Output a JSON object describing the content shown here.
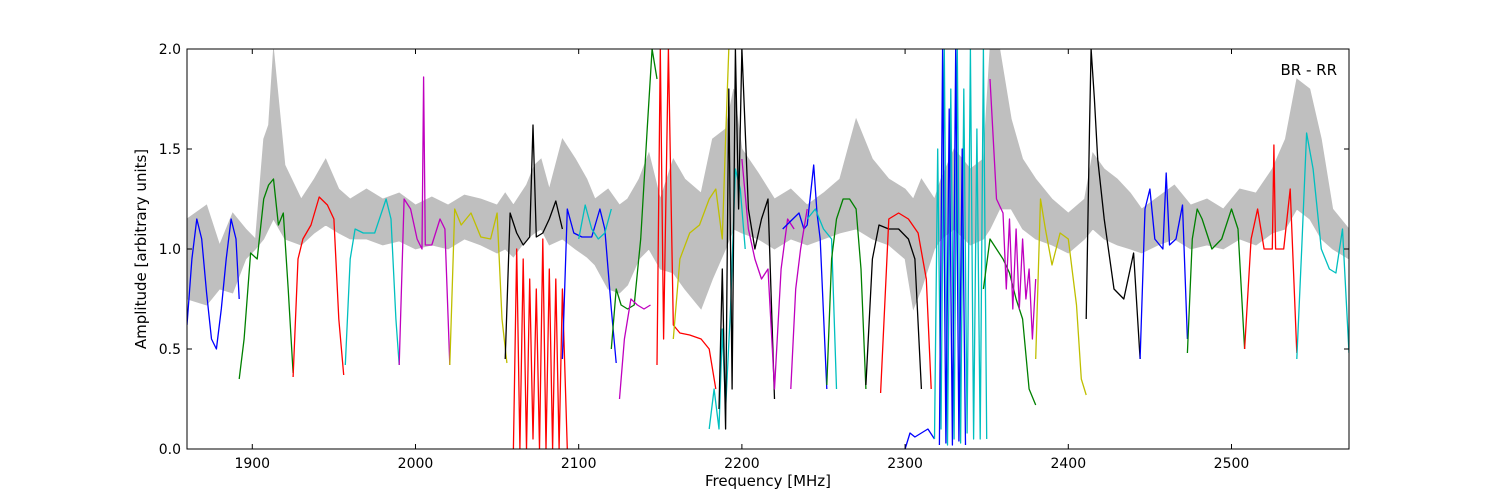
{
  "chart_data": {
    "type": "line",
    "title": "",
    "annotation": "BR - RR",
    "xlabel": "Frequency [MHz]",
    "ylabel": "Amplitude [arbitrary units]",
    "xlim": [
      1860,
      2572
    ],
    "ylim": [
      0.0,
      2.0
    ],
    "xticks": [
      1900,
      2000,
      2100,
      2200,
      2300,
      2400,
      2500
    ],
    "yticks": [
      0.0,
      0.5,
      1.0,
      1.5,
      2.0
    ],
    "xtick_labels": [
      "1900",
      "2000",
      "2100",
      "2200",
      "2300",
      "2400",
      "2500"
    ],
    "ytick_labels": [
      "0.0",
      "0.5",
      "1.0",
      "1.5",
      "2.0"
    ],
    "grid": false,
    "envelope": {
      "color": "#bfbfbf",
      "x": [
        1860,
        1872,
        1880,
        1888,
        1896,
        1902,
        1907,
        1910,
        1913,
        1920,
        1930,
        1938,
        1945,
        1953,
        1960,
        1970,
        1980,
        1990,
        2000,
        2010,
        2020,
        2030,
        2040,
        2050,
        2055,
        2060,
        2068,
        2073,
        2077,
        2082,
        2090,
        2098,
        2105,
        2110,
        2118,
        2125,
        2130,
        2137,
        2143,
        2150,
        2158,
        2165,
        2175,
        2182,
        2190,
        2195,
        2200,
        2210,
        2220,
        2230,
        2240,
        2250,
        2260,
        2270,
        2280,
        2290,
        2300,
        2305,
        2310,
        2318,
        2322,
        2330,
        2340,
        2348,
        2352,
        2358,
        2365,
        2372,
        2380,
        2390,
        2400,
        2410,
        2415,
        2422,
        2430,
        2438,
        2445,
        2455,
        2465,
        2475,
        2485,
        2495,
        2505,
        2515,
        2525,
        2533,
        2540,
        2548,
        2555,
        2562,
        2572
      ],
      "upper": [
        1.15,
        1.22,
        1.02,
        1.18,
        1.1,
        1.05,
        1.55,
        1.62,
        2.0,
        1.42,
        1.25,
        1.35,
        1.45,
        1.3,
        1.25,
        1.3,
        1.25,
        1.28,
        1.22,
        1.26,
        1.22,
        1.27,
        1.25,
        1.22,
        1.28,
        1.22,
        1.32,
        1.42,
        1.45,
        1.3,
        1.55,
        1.45,
        1.35,
        1.25,
        1.3,
        1.22,
        1.25,
        1.35,
        1.48,
        1.25,
        1.45,
        1.35,
        1.28,
        1.55,
        1.6,
        1.8,
        1.5,
        1.38,
        1.25,
        1.3,
        1.22,
        1.28,
        1.35,
        1.65,
        1.45,
        1.35,
        1.3,
        1.25,
        1.35,
        1.25,
        1.35,
        1.5,
        1.4,
        1.45,
        2.0,
        2.0,
        1.65,
        1.45,
        1.35,
        1.25,
        1.18,
        1.25,
        1.48,
        1.4,
        1.35,
        1.28,
        1.2,
        1.26,
        1.32,
        1.22,
        1.25,
        1.2,
        1.3,
        1.28,
        1.4,
        1.55,
        1.85,
        1.8,
        1.55,
        1.2,
        1.1
      ],
      "lower": [
        0.75,
        0.72,
        0.8,
        0.78,
        0.95,
        1.0,
        1.05,
        1.1,
        1.15,
        1.05,
        1.02,
        1.08,
        1.12,
        1.08,
        1.05,
        1.05,
        1.02,
        1.04,
        1.0,
        1.02,
        1.0,
        1.05,
        1.02,
        0.98,
        1.0,
        0.96,
        1.05,
        1.08,
        1.1,
        1.02,
        1.05,
        1.0,
        0.96,
        0.92,
        0.8,
        0.78,
        0.82,
        0.95,
        1.0,
        0.9,
        0.88,
        0.8,
        0.7,
        0.85,
        1.0,
        1.1,
        1.08,
        1.05,
        1.0,
        1.05,
        1.02,
        1.05,
        1.08,
        1.1,
        1.05,
        1.02,
        0.95,
        0.7,
        0.8,
        1.0,
        1.05,
        1.1,
        1.02,
        1.05,
        1.1,
        1.2,
        1.2,
        1.1,
        1.05,
        1.02,
        0.98,
        1.05,
        1.1,
        1.05,
        1.02,
        1.0,
        0.98,
        1.02,
        1.05,
        1.0,
        1.02,
        1.0,
        1.05,
        1.02,
        1.08,
        1.1,
        1.2,
        1.15,
        1.05,
        1.0,
        0.95
      ]
    },
    "series": [
      {
        "color": "#0000ff",
        "x": [
          1860,
          1863,
          1866,
          1869,
          1872,
          1875,
          1878,
          1881,
          1884,
          1887,
          1890,
          1892
        ],
        "y": [
          0.62,
          0.95,
          1.15,
          1.05,
          0.78,
          0.55,
          0.5,
          0.7,
          0.95,
          1.15,
          1.05,
          0.75
        ]
      },
      {
        "color": "#008000",
        "x": [
          1892,
          1895,
          1899,
          1903,
          1907,
          1910,
          1913,
          1916,
          1919,
          1922,
          1925
        ],
        "y": [
          0.35,
          0.55,
          0.98,
          0.95,
          1.25,
          1.32,
          1.35,
          1.12,
          1.18,
          0.8,
          0.38
        ]
      },
      {
        "color": "#ff0000",
        "x": [
          1925,
          1928,
          1931,
          1936,
          1941,
          1946,
          1950,
          1953,
          1956
        ],
        "y": [
          0.36,
          0.95,
          1.05,
          1.12,
          1.26,
          1.22,
          1.15,
          0.65,
          0.37
        ]
      },
      {
        "color": "#00bfbf",
        "x": [
          1957,
          1960,
          1963,
          1968,
          1975,
          1982,
          1985,
          1988,
          1990
        ],
        "y": [
          0.42,
          0.95,
          1.1,
          1.08,
          1.08,
          1.25,
          1.15,
          0.65,
          0.42
        ]
      },
      {
        "color": "#bf00bf",
        "x": [
          1990,
          1993,
          1997,
          2001,
          2004,
          2005,
          2006,
          2010,
          2015,
          2018,
          2021
        ],
        "y": [
          0.42,
          1.25,
          1.2,
          1.05,
          1.0,
          1.86,
          1.02,
          1.02,
          1.15,
          1.1,
          0.42
        ]
      },
      {
        "color": "#bfbf00",
        "x": [
          2021,
          2024,
          2028,
          2034,
          2040,
          2046,
          2050,
          2053,
          2056
        ],
        "y": [
          0.42,
          1.2,
          1.12,
          1.18,
          1.06,
          1.05,
          1.18,
          0.65,
          0.43
        ]
      },
      {
        "color": "#000000",
        "x": [
          2055,
          2058,
          2062,
          2066,
          2070,
          2072,
          2074,
          2078,
          2082,
          2086,
          2090
        ],
        "y": [
          0.45,
          1.18,
          1.08,
          1.02,
          1.06,
          1.62,
          1.06,
          1.08,
          1.15,
          1.24,
          1.1
        ]
      },
      {
        "color": "#ff0000",
        "x": [
          2060,
          2062,
          2064,
          2066,
          2068,
          2070,
          2072,
          2074,
          2076,
          2078,
          2080,
          2082,
          2084,
          2086,
          2088,
          2090,
          2093
        ],
        "y": [
          0.0,
          1.0,
          0.0,
          0.95,
          0.0,
          0.85,
          0.05,
          0.8,
          0.0,
          1.05,
          0.0,
          0.9,
          0.0,
          0.85,
          0.0,
          0.8,
          0.0
        ]
      },
      {
        "color": "#0000ff",
        "x": [
          2090,
          2093,
          2097,
          2102,
          2108,
          2113,
          2116,
          2120,
          2123
        ],
        "y": [
          0.45,
          1.2,
          1.08,
          1.06,
          1.06,
          1.2,
          1.1,
          0.7,
          0.43
        ]
      },
      {
        "color": "#00bfbf",
        "x": [
          2100,
          2104,
          2108,
          2112,
          2116,
          2120
        ],
        "y": [
          1.05,
          1.22,
          1.1,
          1.05,
          1.08,
          1.2
        ]
      },
      {
        "color": "#008000",
        "x": [
          2120,
          2123,
          2126,
          2130,
          2134,
          2138,
          2142,
          2145,
          2148
        ],
        "y": [
          0.5,
          0.8,
          0.72,
          0.7,
          0.72,
          1.05,
          1.6,
          2.0,
          1.85
        ]
      },
      {
        "color": "#bf00bf",
        "x": [
          2125,
          2128,
          2132,
          2136,
          2140,
          2144
        ],
        "y": [
          0.25,
          0.55,
          0.75,
          0.72,
          0.7,
          0.72
        ]
      },
      {
        "color": "#ff0000",
        "x": [
          2148,
          2150,
          2152,
          2155,
          2158,
          2162,
          2168,
          2175,
          2180,
          2184
        ],
        "y": [
          0.42,
          2.0,
          0.55,
          2.0,
          0.62,
          0.58,
          0.57,
          0.55,
          0.5,
          0.3
        ]
      },
      {
        "color": "#bfbf00",
        "x": [
          2158,
          2162,
          2168,
          2174,
          2180,
          2184,
          2188,
          2190,
          2192
        ],
        "y": [
          0.55,
          0.95,
          1.08,
          1.12,
          1.25,
          1.3,
          1.05,
          1.55,
          2.0
        ]
      },
      {
        "color": "#00bfbf",
        "x": [
          2180,
          2183,
          2186,
          2188,
          2190,
          2193,
          2196,
          2199,
          2202
        ],
        "y": [
          0.1,
          0.3,
          0.1,
          0.6,
          0.2,
          0.7,
          1.4,
          1.3,
          1.0
        ]
      },
      {
        "color": "#000000",
        "x": [
          2186,
          2188,
          2190,
          2192,
          2194,
          2196,
          2198,
          2200,
          2204,
          2208,
          2212,
          2216,
          2220
        ],
        "y": [
          0.2,
          0.9,
          0.1,
          1.8,
          0.3,
          2.0,
          1.2,
          2.0,
          1.2,
          1.0,
          1.15,
          1.25,
          0.25
        ]
      },
      {
        "color": "#bf00bf",
        "x": [
          2200,
          2204,
          2208,
          2212,
          2216,
          2220,
          2224,
          2228,
          2232
        ],
        "y": [
          1.45,
          1.1,
          0.95,
          0.85,
          0.9,
          0.3,
          0.9,
          1.15,
          1.1
        ]
      },
      {
        "color": "#0000ff",
        "x": [
          2225,
          2230,
          2235,
          2238,
          2240,
          2244,
          2246,
          2248,
          2252
        ],
        "y": [
          1.1,
          1.14,
          1.18,
          1.1,
          1.12,
          1.42,
          1.18,
          1.05,
          0.3
        ]
      },
      {
        "color": "#00bfbf",
        "x": [
          2240,
          2245,
          2250,
          2255,
          2258
        ],
        "y": [
          1.15,
          1.2,
          1.1,
          1.05,
          0.3
        ]
      },
      {
        "color": "#008000",
        "x": [
          2252,
          2255,
          2258,
          2262,
          2266,
          2270,
          2273,
          2276
        ],
        "y": [
          0.32,
          0.95,
          1.15,
          1.25,
          1.25,
          1.2,
          0.9,
          0.3
        ]
      },
      {
        "color": "#bf00bf",
        "x": [
          2230,
          2233,
          2236,
          2238,
          2240
        ],
        "y": [
          0.3,
          0.8,
          1.0,
          1.1,
          1.2
        ]
      },
      {
        "color": "#000000",
        "x": [
          2276,
          2280,
          2284,
          2290,
          2296,
          2302,
          2306,
          2310
        ],
        "y": [
          0.32,
          0.95,
          1.12,
          1.1,
          1.1,
          1.05,
          0.95,
          0.3
        ]
      },
      {
        "color": "#ff0000",
        "x": [
          2285,
          2290,
          2296,
          2302,
          2308,
          2313,
          2316
        ],
        "y": [
          0.28,
          1.15,
          1.18,
          1.15,
          1.08,
          0.85,
          0.3
        ]
      },
      {
        "color": "#0000ff",
        "x": [
          2300,
          2303,
          2306,
          2310,
          2314,
          2318
        ],
        "y": [
          0.0,
          0.08,
          0.06,
          0.08,
          0.1,
          0.05
        ]
      },
      {
        "color": "#00bfbf",
        "x": [
          2318,
          2320,
          2322,
          2324,
          2326,
          2328,
          2330,
          2332,
          2334,
          2336,
          2338,
          2340,
          2342,
          2344,
          2346,
          2348,
          2350
        ],
        "y": [
          0.05,
          1.5,
          0.1,
          2.0,
          0.02,
          1.8,
          0.05,
          2.0,
          0.03,
          1.8,
          0.08,
          2.0,
          0.05,
          1.6,
          0.05,
          2.0,
          0.05
        ]
      },
      {
        "color": "#0000ff",
        "x": [
          2321,
          2323,
          2325,
          2327,
          2329,
          2331,
          2333,
          2335,
          2337
        ],
        "y": [
          0.02,
          2.0,
          0.03,
          1.7,
          0.02,
          2.0,
          0.04,
          1.5,
          0.02
        ]
      },
      {
        "color": "#008000",
        "x": [
          2348,
          2352,
          2356,
          2360,
          2364,
          2368,
          2372,
          2376,
          2380
        ],
        "y": [
          0.8,
          1.05,
          1.0,
          0.95,
          0.88,
          0.75,
          0.65,
          0.3,
          0.22
        ]
      },
      {
        "color": "#bf00bf",
        "x": [
          2352,
          2356,
          2360,
          2362,
          2364,
          2366,
          2368,
          2370,
          2372,
          2374,
          2376,
          2378,
          2380
        ],
        "y": [
          1.85,
          1.25,
          1.18,
          0.8,
          1.15,
          0.7,
          1.1,
          0.7,
          1.05,
          0.75,
          0.9,
          0.55,
          0.85
        ]
      },
      {
        "color": "#bfbf00",
        "x": [
          2380,
          2383,
          2386,
          2390,
          2395,
          2400,
          2405,
          2408,
          2411
        ],
        "y": [
          0.45,
          1.25,
          1.1,
          0.92,
          1.08,
          1.05,
          0.72,
          0.35,
          0.27
        ]
      },
      {
        "color": "#000000",
        "x": [
          2411,
          2413,
          2414,
          2416,
          2418,
          2422,
          2428,
          2434,
          2440,
          2444
        ],
        "y": [
          0.65,
          1.6,
          2.0,
          1.75,
          1.45,
          1.15,
          0.8,
          0.75,
          0.98,
          0.45
        ]
      },
      {
        "color": "#0000ff",
        "x": [
          2444,
          2447,
          2450,
          2453,
          2458,
          2460,
          2462,
          2466,
          2470,
          2473
        ],
        "y": [
          0.45,
          1.2,
          1.3,
          1.05,
          1.0,
          1.38,
          1.02,
          1.05,
          1.22,
          0.55
        ]
      },
      {
        "color": "#008000",
        "x": [
          2473,
          2476,
          2479,
          2482,
          2488,
          2494,
          2500,
          2504,
          2508
        ],
        "y": [
          0.48,
          1.05,
          1.2,
          1.15,
          1.0,
          1.05,
          1.2,
          1.1,
          0.5
        ]
      },
      {
        "color": "#ff0000",
        "x": [
          2508,
          2512,
          2516,
          2520,
          2525,
          2526,
          2527,
          2532,
          2536,
          2540
        ],
        "y": [
          0.5,
          1.05,
          1.2,
          1.0,
          1.0,
          1.52,
          1.0,
          1.0,
          1.3,
          0.48
        ]
      },
      {
        "color": "#00bfbf",
        "x": [
          2540,
          2543,
          2546,
          2550,
          2555,
          2560,
          2564,
          2568,
          2572
        ],
        "y": [
          0.45,
          1.0,
          1.58,
          1.4,
          1.0,
          0.9,
          0.88,
          1.1,
          0.48
        ]
      }
    ]
  }
}
